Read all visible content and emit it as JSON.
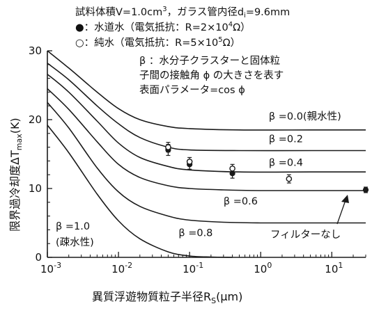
{
  "notes": {
    "line1_prefix": "試料体積V=1.0cm",
    "line1_sup": "3",
    "line1_mid": "，ガラス管内径d",
    "line1_sub": "i",
    "line1_suffix": "=9.6mm",
    "tap_marker": "●",
    "tap_prefix": "：水道水（電気抵抗：R=2×10",
    "tap_sup": "4",
    "tap_suffix": "Ω）",
    "pure_marker": "○",
    "pure_prefix": "：純水（電気抵抗：R=5×10",
    "pure_sup": "5",
    "pure_suffix": "Ω）",
    "beta_line1": "β ：水分子クラスターと固体粒",
    "beta_line2": "子間の接触角 ϕ の大きさを表す",
    "beta_line3": "表面パラメータ=cos ϕ"
  },
  "annotations": {
    "no_filter": "フィルターなし",
    "b1_label": "β =1.0",
    "b1_sub": "(疎水性)"
  },
  "colors": {
    "ink": "#1a1a1a",
    "background": "#ffffff"
  },
  "chart_data": {
    "type": "line",
    "x_scale": "log",
    "xlim": [
      0.001,
      30
    ],
    "ylim": [
      0,
      30
    ],
    "xlabel": "異質浮遊物質粒子半径R_S(μm)",
    "xlabel_main": "異質浮遊物質粒子半径R",
    "xlabel_sub": "S",
    "xlabel_unit": "(μm)",
    "ylabel": "限界過冷却度ΔT_max(K)",
    "ylabel_main": "限界過冷却度ΔT",
    "ylabel_sub": "max",
    "ylabel_unit": "(K)",
    "x_ticks": [
      {
        "value": 0.001,
        "base": "10",
        "exp": "-3"
      },
      {
        "value": 0.01,
        "base": "10",
        "exp": "-2"
      },
      {
        "value": 0.1,
        "base": "10",
        "exp": "-1"
      },
      {
        "value": 1,
        "base": "10",
        "exp": "0"
      },
      {
        "value": 10,
        "base": "10",
        "exp": "1"
      }
    ],
    "y_ticks": [
      0,
      10,
      20,
      30
    ],
    "series": [
      {
        "name": "β =0.0(親水性)",
        "x": [
          0.001,
          0.002,
          0.005,
          0.01,
          0.02,
          0.05,
          0.1,
          0.5,
          5,
          30
        ],
        "y": [
          30,
          27.5,
          24,
          21.6,
          20.0,
          19.0,
          18.7,
          18.5,
          18.5,
          18.5
        ]
      },
      {
        "name": "β =0.2",
        "x": [
          0.001,
          0.002,
          0.005,
          0.01,
          0.02,
          0.05,
          0.1,
          0.5,
          5,
          30
        ],
        "y": [
          28.2,
          25.8,
          22.0,
          19.4,
          17.4,
          16.0,
          15.6,
          15.5,
          15.5,
          15.5
        ]
      },
      {
        "name": "β =0.4",
        "x": [
          0.001,
          0.002,
          0.005,
          0.01,
          0.02,
          0.05,
          0.1,
          0.5,
          5,
          30
        ],
        "y": [
          26.6,
          24.0,
          19.8,
          16.6,
          14.5,
          13.2,
          12.7,
          12.4,
          12.4,
          12.4
        ]
      },
      {
        "name": "β =0.6",
        "x": [
          0.001,
          0.002,
          0.005,
          0.01,
          0.02,
          0.05,
          0.1,
          0.3,
          1,
          5,
          30
        ],
        "y": [
          24.5,
          21.5,
          16.8,
          13.5,
          11.6,
          10.4,
          10.0,
          9.8,
          9.7,
          9.7,
          9.7
        ]
      },
      {
        "name": "β =0.8",
        "x": [
          0.001,
          0.002,
          0.005,
          0.01,
          0.02,
          0.05,
          0.1,
          0.3,
          1,
          5,
          30
        ],
        "y": [
          22.5,
          18.8,
          13.0,
          9.5,
          7.4,
          6.0,
          5.4,
          5.1,
          5.0,
          5.0,
          5.0
        ]
      },
      {
        "name": "β =1.0(疎水性)",
        "x": [
          0.001,
          0.002,
          0.005,
          0.01,
          0.02,
          0.05,
          0.1,
          0.2,
          0.4
        ],
        "y": [
          19.2,
          15.2,
          9.2,
          5.3,
          2.7,
          0.8,
          0.2,
          0.05,
          0
        ]
      }
    ],
    "measurements": [
      {
        "name": "水道水",
        "marker": "filled",
        "x": 0.05,
        "y": 15.6,
        "err": 0.8
      },
      {
        "name": "水道水",
        "marker": "filled",
        "x": 0.1,
        "y": 13.5,
        "err": 0.7
      },
      {
        "name": "水道水",
        "marker": "filled",
        "x": 0.4,
        "y": 12.2,
        "err": 0.7
      },
      {
        "name": "水道水",
        "marker": "filled",
        "x": 30,
        "y": 9.8,
        "err": 0.4
      },
      {
        "name": "純水",
        "marker": "open",
        "x": 0.05,
        "y": 16.0,
        "err": 0.7
      },
      {
        "name": "純水",
        "marker": "open",
        "x": 0.1,
        "y": 13.9,
        "err": 0.6
      },
      {
        "name": "純水",
        "marker": "open",
        "x": 0.4,
        "y": 12.9,
        "err": 0.6
      },
      {
        "name": "純水",
        "marker": "open",
        "x": 2.5,
        "y": 11.4,
        "err": 0.6
      }
    ]
  }
}
